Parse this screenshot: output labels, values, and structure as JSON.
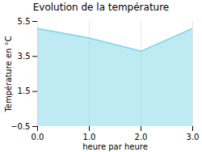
{
  "chart_data": {
    "type": "area",
    "title": "Evolution de la température",
    "xlabel": "heure par heure",
    "ylabel": "Température en °C",
    "x": [
      0,
      1,
      2,
      3
    ],
    "values": [
      5.1,
      4.55,
      3.8,
      5.1
    ],
    "xlim": [
      0,
      3
    ],
    "ylim": [
      -0.5,
      5.5
    ],
    "xticks": [
      0,
      1,
      2,
      3
    ],
    "yticks": [
      -0.5,
      1.5,
      3.5,
      5.5
    ],
    "color": "#7dd6e8",
    "grid": "x"
  }
}
